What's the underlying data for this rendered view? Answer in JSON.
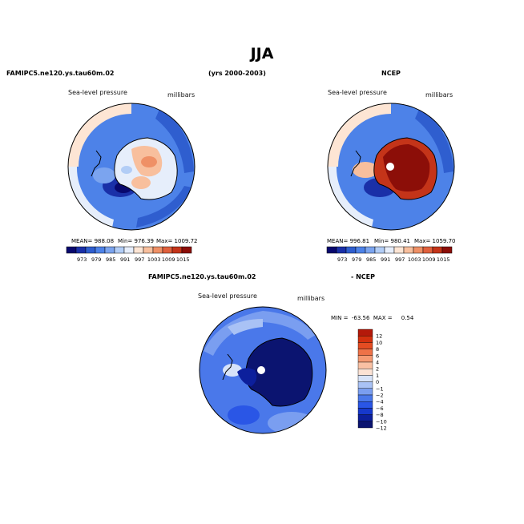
{
  "title": "JJA",
  "colors": {
    "abs_levels": [
      "#08086e",
      "#1a30a8",
      "#2f5ecf",
      "#4d82e8",
      "#7ba4ef",
      "#b2cdf6",
      "#e6eefb",
      "#fde5d4",
      "#f8bf9d",
      "#ef9066",
      "#e0613d",
      "#c43419",
      "#8c0e08"
    ],
    "diff_levels": [
      "#0b1470",
      "#0c1f9c",
      "#1638cc",
      "#2a56e6",
      "#4a78ea",
      "#7a9ef0",
      "#a9c2f5",
      "#d7e3f9",
      "#fbe2d4",
      "#f9c0a3",
      "#f59a73",
      "#ee7248",
      "#e44c22",
      "#d3300e",
      "#b4190a"
    ]
  },
  "chart_data": [
    {
      "type": "heatmap",
      "panel": "model",
      "case_label": "FAMIPC5.ne120.ys.tau60m.02",
      "period_label": "(yrs 2000-2003)",
      "field_label": "Sea-level pressure",
      "units_label": "millibars",
      "stats": {
        "mean": "MEAN= 988.08",
        "min": "Min= 976.39",
        "max": "Max= 1009.72"
      },
      "colorbar_levels": [
        973,
        979,
        985,
        991,
        997,
        1003,
        1009,
        1015
      ],
      "colorbar_ticks": [
        "973",
        "979",
        "985",
        "991",
        "997",
        "1003",
        "1009",
        "1015"
      ],
      "mean": 988.08,
      "min": 976.39,
      "max": 1009.72
    },
    {
      "type": "heatmap",
      "panel": "obs",
      "case_label": "NCEP",
      "field_label": "Sea-level pressure",
      "units_label": "millibars",
      "stats": {
        "mean": "MEAN= 996.81",
        "min": "Min= 980.41",
        "max": "Max= 1059.70"
      },
      "colorbar_levels": [
        973,
        979,
        985,
        991,
        997,
        1003,
        1009,
        1015
      ],
      "colorbar_ticks": [
        "973",
        "979",
        "985",
        "991",
        "997",
        "1003",
        "1009",
        "1015"
      ],
      "mean": 996.81,
      "min": 980.41,
      "max": 1059.7
    },
    {
      "type": "heatmap",
      "panel": "difference",
      "case_label": "FAMIPC5.ne120.ys.tau60m.02",
      "minus_label": "- NCEP",
      "field_label": "Sea-level pressure",
      "units_label": "millibars",
      "minmax_text": "MIN =  -63.56  MAX =     0.54",
      "colorbar_levels": [
        -12,
        -10,
        -8,
        -6,
        -4,
        -2,
        -1,
        0,
        1,
        2,
        4,
        6,
        8,
        10,
        12
      ],
      "colorbar_ticks": [
        "12",
        "10",
        "8",
        "6",
        "4",
        "2",
        "1",
        "0",
        "−1",
        "−2",
        "−4",
        "−6",
        "−8",
        "−10",
        "−12"
      ],
      "min": -63.56,
      "max": 0.54
    }
  ]
}
